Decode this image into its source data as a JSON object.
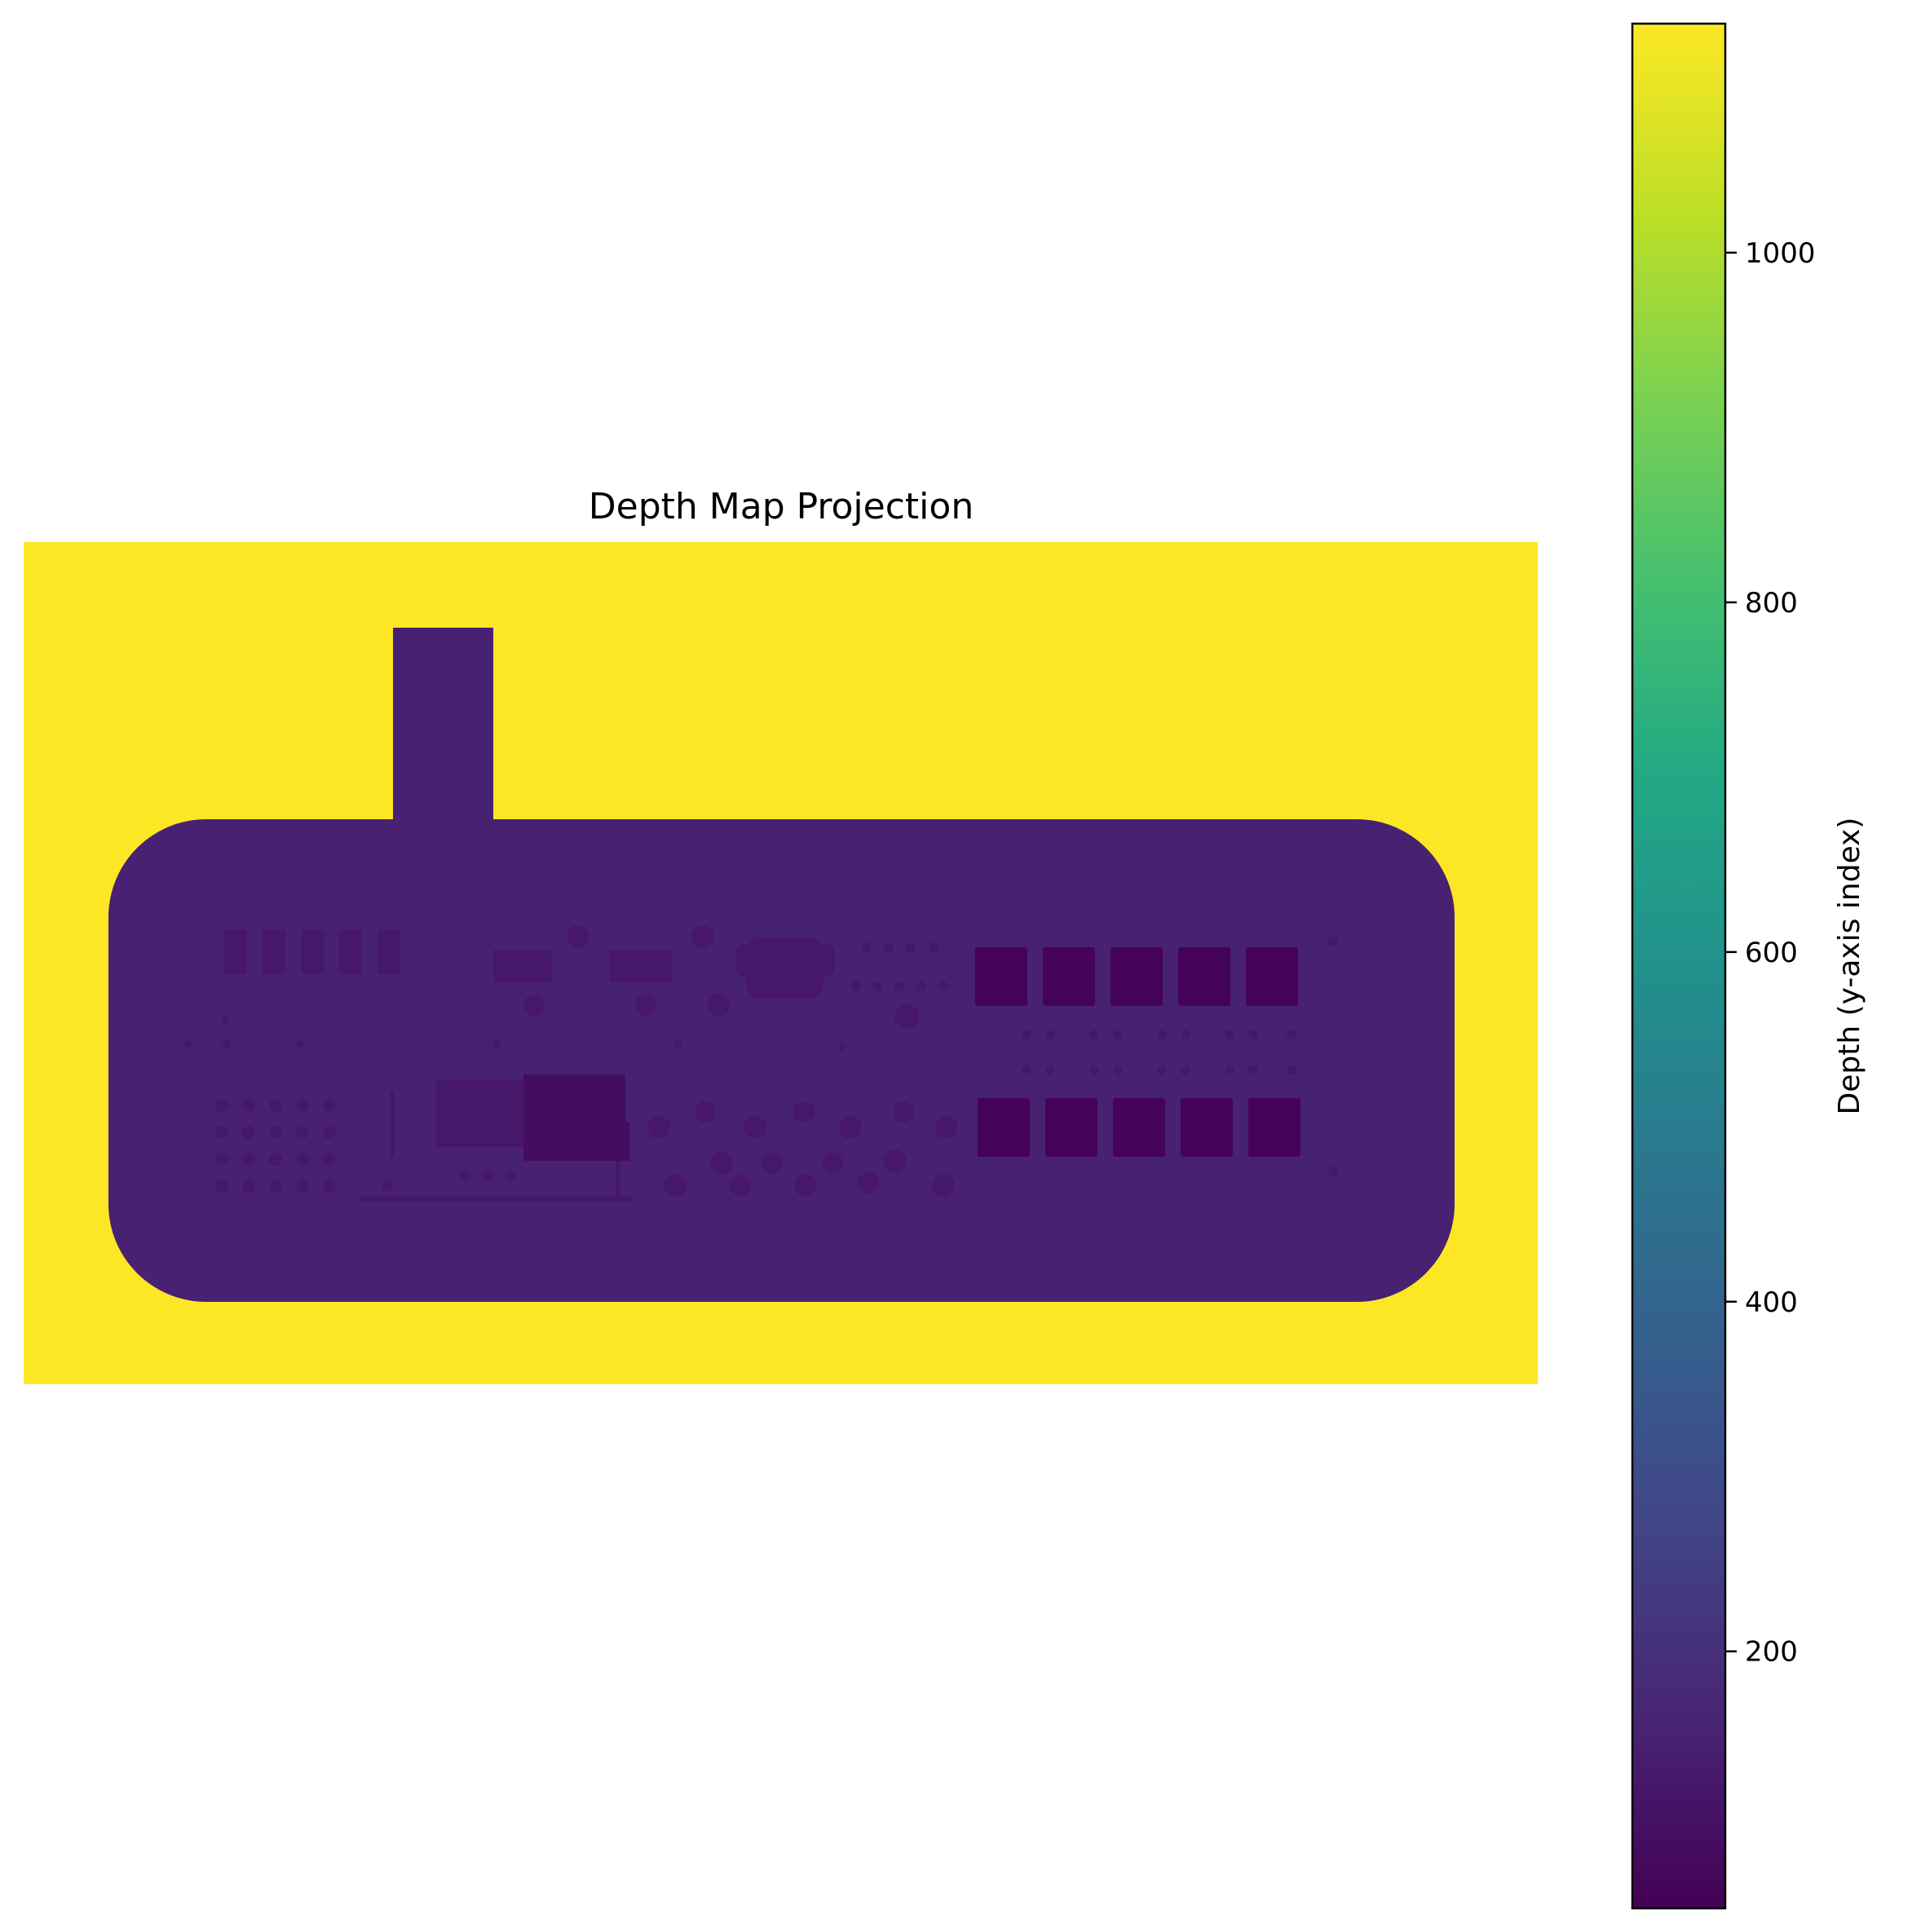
{
  "chart_data": {
    "type": "heatmap",
    "title": "Depth Map Projection",
    "colormap": "viridis",
    "axes_visible": false,
    "colorbar": {
      "label": "Depth (y-axis index)",
      "vmin": 53,
      "vmax": 1131,
      "ticks": [
        200,
        400,
        600,
        800,
        1000
      ],
      "tick_labels": [
        "200",
        "400",
        "600",
        "800",
        "1000"
      ],
      "placement": "right"
    },
    "regions": {
      "background_depth": 1131,
      "body_depth": 152,
      "features": {
        "shallow": 125,
        "deep": 90,
        "deepest": 60
      }
    }
  }
}
